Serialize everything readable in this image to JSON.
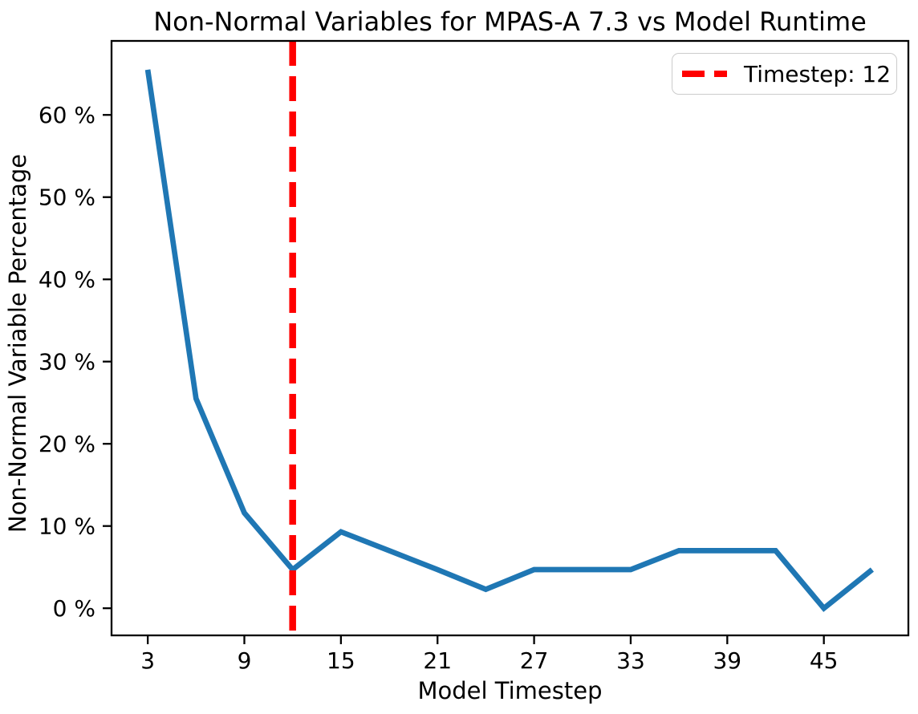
{
  "chart_data": {
    "type": "line",
    "title": "Non-Normal Variables for MPAS-A 7.3 vs Model Runtime",
    "xlabel": "Model Timestep",
    "ylabel": "Non-Normal Variable Percentage",
    "x": [
      3,
      6,
      9,
      12,
      15,
      18,
      21,
      24,
      27,
      30,
      33,
      36,
      39,
      42,
      45,
      48
    ],
    "y": [
      65.5,
      25.5,
      11.6,
      4.7,
      9.3,
      7.0,
      4.7,
      2.3,
      4.7,
      4.7,
      4.7,
      7.0,
      7.0,
      7.0,
      0.0,
      4.7
    ],
    "series_name": "non-normal-variable-percentage",
    "line_color": "#1f77b4",
    "xticks": [
      3,
      9,
      15,
      21,
      27,
      33,
      39,
      45
    ],
    "yticks": [
      0,
      10,
      20,
      30,
      40,
      50,
      60
    ],
    "ytick_suffix": " %",
    "xlim": [
      0.75,
      50.25
    ],
    "ylim": [
      -3.3,
      69.0
    ],
    "grid": false,
    "vline": {
      "x": 12,
      "color": "#ff0000",
      "linestyle": "dashed",
      "label": "Timestep: 12"
    },
    "legend": {
      "position": "upper-right",
      "entries": [
        {
          "label": "Timestep: 12",
          "color": "#ff0000",
          "linestyle": "dashed"
        }
      ]
    }
  }
}
